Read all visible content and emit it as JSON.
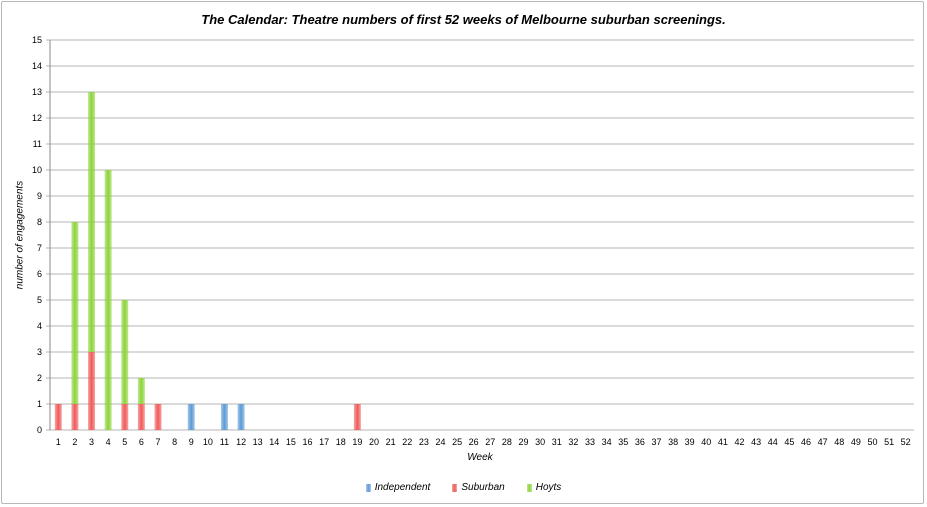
{
  "chart_data": {
    "type": "bar",
    "stacked": true,
    "title": "The Calendar: Theatre numbers of first 52 weeks of Melbourne suburban screenings.",
    "xlabel": "Week",
    "ylabel": "number of engagements",
    "ylim": [
      0,
      15
    ],
    "yticks": [
      "0",
      "1",
      "2",
      "3",
      "4",
      "5",
      "6",
      "7",
      "8",
      "9",
      "10",
      "11",
      "12",
      "13",
      "14",
      "15"
    ],
    "grid": true,
    "legend_position": "bottom",
    "categories": [
      "1",
      "2",
      "3",
      "4",
      "5",
      "6",
      "7",
      "8",
      "9",
      "10",
      "11",
      "12",
      "13",
      "14",
      "15",
      "16",
      "17",
      "18",
      "19",
      "20",
      "21",
      "22",
      "23",
      "24",
      "25",
      "26",
      "27",
      "28",
      "29",
      "30",
      "31",
      "32",
      "33",
      "34",
      "35",
      "36",
      "37",
      "38",
      "39",
      "40",
      "41",
      "42",
      "43",
      "44",
      "45",
      "46",
      "47",
      "48",
      "49",
      "50",
      "51",
      "52"
    ],
    "series": [
      {
        "name": "Independent",
        "color": "#5b9bd5",
        "values": [
          0,
          0,
          0,
          0,
          0,
          0,
          0,
          0,
          1,
          0,
          1,
          1,
          0,
          0,
          0,
          0,
          0,
          0,
          0,
          0,
          0,
          0,
          0,
          0,
          0,
          0,
          0,
          0,
          0,
          0,
          0,
          0,
          0,
          0,
          0,
          0,
          0,
          0,
          0,
          0,
          0,
          0,
          0,
          0,
          0,
          0,
          0,
          0,
          0,
          0,
          0,
          0
        ]
      },
      {
        "name": "Suburban",
        "color": "#f05a5a",
        "values": [
          1,
          1,
          3,
          0,
          1,
          1,
          1,
          0,
          0,
          0,
          0,
          0,
          0,
          0,
          0,
          0,
          0,
          0,
          1,
          0,
          0,
          0,
          0,
          0,
          0,
          0,
          0,
          0,
          0,
          0,
          0,
          0,
          0,
          0,
          0,
          0,
          0,
          0,
          0,
          0,
          0,
          0,
          0,
          0,
          0,
          0,
          0,
          0,
          0,
          0,
          0,
          0
        ]
      },
      {
        "name": "Hoyts",
        "color": "#8cd43a",
        "values": [
          0,
          7,
          10,
          10,
          4,
          1,
          0,
          0,
          0,
          0,
          0,
          0,
          0,
          0,
          0,
          0,
          0,
          0,
          0,
          0,
          0,
          0,
          0,
          0,
          0,
          0,
          0,
          0,
          0,
          0,
          0,
          0,
          0,
          0,
          0,
          0,
          0,
          0,
          0,
          0,
          0,
          0,
          0,
          0,
          0,
          0,
          0,
          0,
          0,
          0,
          0,
          0
        ]
      }
    ]
  }
}
